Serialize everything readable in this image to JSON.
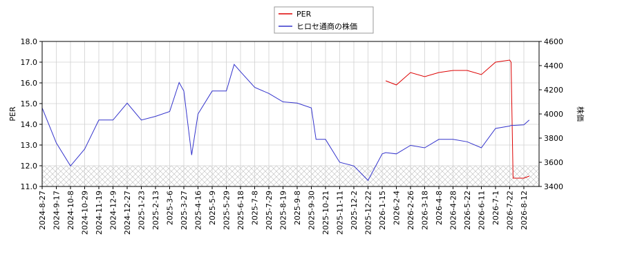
{
  "chart_data": {
    "type": "line",
    "y_label": "PER",
    "y2_label": "株価",
    "x": [
      "2024-8-27",
      "2024-9-17",
      "2024-10-8",
      "2024-10-29",
      "2024-11-19",
      "2024-12-9",
      "2024-12-27",
      "2025-1-23",
      "2025-2-13",
      "2025-3-6",
      "2025-3-20",
      "2025-3-27",
      "2025-4-7",
      "2025-4-16",
      "2025-5-9",
      "2025-5-29",
      "2025-6-9",
      "2025-6-18",
      "2025-7-8",
      "2025-7-29",
      "2025-8-19",
      "2025-9-8",
      "2025-9-30",
      "2025-10-7",
      "2025-10-21",
      "2025-11-11",
      "2025-12-2",
      "2025-12-22",
      "2026-1-15",
      "2026-1-20",
      "2026-2-4",
      "2026-2-26",
      "2026-3-18",
      "2026-4-8",
      "2026-4-28",
      "2026-5-22",
      "2026-6-11",
      "2026-7-1",
      "2026-7-22",
      "2026-7-24",
      "2026-7-27",
      "2026-8-12",
      "2026-8-20"
    ],
    "series": [
      {
        "name": "PER",
        "color": "#dd0000",
        "axis": "y",
        "values": [
          null,
          null,
          null,
          null,
          null,
          null,
          null,
          null,
          null,
          null,
          null,
          null,
          null,
          null,
          null,
          null,
          null,
          null,
          null,
          null,
          null,
          null,
          null,
          null,
          null,
          null,
          null,
          null,
          null,
          16.1,
          15.9,
          16.5,
          16.3,
          16.5,
          16.6,
          16.6,
          16.4,
          17.0,
          17.1,
          17.0,
          11.4,
          11.4,
          11.5
        ]
      },
      {
        "name": "ヒロセ通商の株価",
        "color": "#3333cc",
        "axis": "y2",
        "values": [
          4050,
          3760,
          3570,
          3710,
          3950,
          3950,
          4090,
          3950,
          3980,
          4020,
          4260,
          4190,
          3660,
          4000,
          4190,
          4190,
          4410,
          4350,
          4220,
          4170,
          4100,
          4090,
          4050,
          3790,
          3790,
          3600,
          3570,
          3450,
          3670,
          3680,
          3670,
          3740,
          3720,
          3790,
          3790,
          3770,
          3720,
          3880,
          3900,
          3905,
          3905,
          3910,
          3950
        ]
      }
    ],
    "xticks": [
      "2024-8-27",
      "2024-9-17",
      "2024-10-8",
      "2024-10-29",
      "2024-11-19",
      "2024-12-9",
      "2024-12-27",
      "2025-1-23",
      "2025-2-13",
      "2025-3-6",
      "2025-3-27",
      "2025-4-16",
      "2025-5-9",
      "2025-5-29",
      "2025-6-18",
      "2025-7-8",
      "2025-7-29",
      "2025-8-19",
      "2025-9-8",
      "2025-9-30",
      "2025-10-21",
      "2025-11-11",
      "2025-12-2",
      "2025-12-22",
      "2026-1-15",
      "2026-2-4",
      "2026-2-26",
      "2026-3-18",
      "2026-4-8",
      "2026-4-28",
      "2026-5-22",
      "2026-6-11",
      "2026-7-1",
      "2026-7-22",
      "2026-8-12"
    ],
    "ylim": [
      11,
      18
    ],
    "yticks": [
      {
        "value": 11,
        "label": "11.0"
      },
      {
        "value": 12,
        "label": "12.0"
      },
      {
        "value": 13,
        "label": "13.0"
      },
      {
        "value": 14,
        "label": "14.0"
      },
      {
        "value": 15,
        "label": "15.0"
      },
      {
        "value": 16,
        "label": "16.0"
      },
      {
        "value": 17,
        "label": "17.0"
      },
      {
        "value": 18,
        "label": "18.0"
      }
    ],
    "y2lim": [
      3400,
      4600
    ],
    "y2ticks": [
      3400,
      3600,
      3800,
      4000,
      4200,
      4400,
      4600
    ],
    "shaded_band": [
      11,
      12
    ],
    "grid": true,
    "legend": "top"
  }
}
